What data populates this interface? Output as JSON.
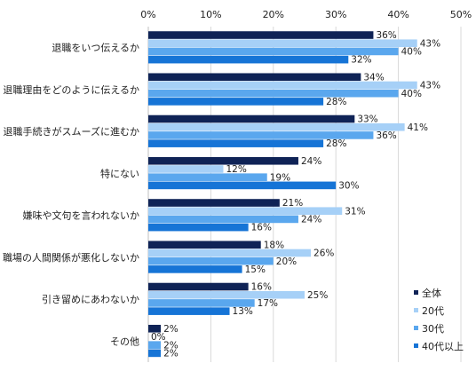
{
  "chart_data": {
    "type": "bar",
    "orientation": "horizontal",
    "title": "",
    "xlabel": "",
    "ylabel": "",
    "xlim": [
      0,
      50
    ],
    "x_ticks": [
      "0%",
      "10%",
      "20%",
      "30%",
      "40%",
      "50%"
    ],
    "grid": "vertical",
    "legend_position": "bottom-right",
    "value_suffix": "%",
    "categories": [
      "退職をいつ伝えるか",
      "退職理由をどのように伝えるか",
      "退職手続きがスムーズに進むか",
      "特にない",
      "嫌味や文句を言われないか",
      "職場の人間関係が悪化しないか",
      "引き留めにあわないか",
      "その他"
    ],
    "series": [
      {
        "name": "全体",
        "color": "#0f2356",
        "values": [
          36,
          34,
          33,
          24,
          21,
          18,
          16,
          2
        ]
      },
      {
        "name": "20代",
        "color": "#a6d0f7",
        "values": [
          43,
          43,
          41,
          12,
          31,
          26,
          25,
          0
        ]
      },
      {
        "name": "30代",
        "color": "#5aa7ee",
        "values": [
          40,
          40,
          36,
          19,
          24,
          20,
          17,
          2
        ]
      },
      {
        "name": "40代以上",
        "color": "#1674d6",
        "values": [
          32,
          28,
          28,
          30,
          16,
          15,
          13,
          2
        ]
      }
    ]
  }
}
